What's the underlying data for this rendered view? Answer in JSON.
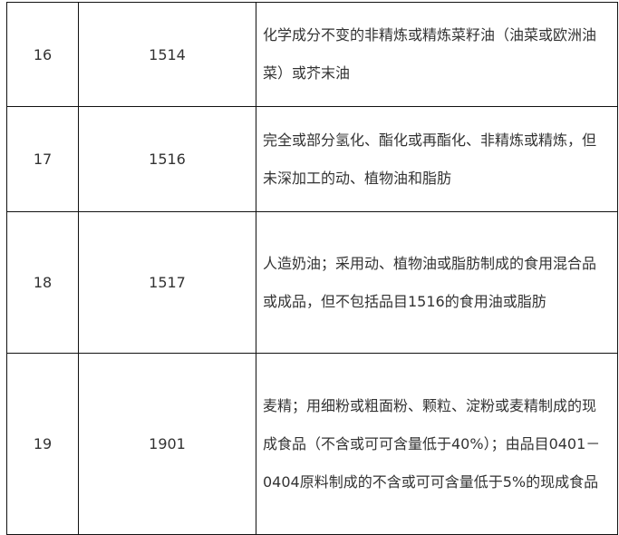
{
  "rows": [
    {
      "index": "16",
      "code": "1514",
      "description": "化学成分不变的非精炼或精炼菜籽油（油菜或欧洲油菜）或芥末油"
    },
    {
      "index": "17",
      "code": "1516",
      "description": "完全或部分氢化、酯化或再酯化、非精炼或精炼，但未深加工的动、植物油和脂肪"
    },
    {
      "index": "18",
      "code": "1517",
      "description": "人造奶油；采用动、植物油或脂肪制成的食用混合品或成品，但不包括品目1516的食用油或脂肪"
    },
    {
      "index": "19",
      "code": "1901",
      "description": "麦精；用细粉或粗面粉、颗粒、淀粉或麦精制成的现成食品（不含或可可含量低于40%）；由品目0401－0404原料制成的不含或可可含量低于5%的现成食品"
    }
  ]
}
